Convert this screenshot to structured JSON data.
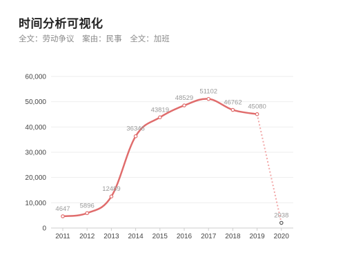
{
  "header": {
    "title": "时间分析可视化",
    "filters": [
      {
        "label": "全文：劳动争议"
      },
      {
        "label": "案由：民事"
      },
      {
        "label": "全文：加班"
      }
    ]
  },
  "chart_data": {
    "type": "line",
    "title": "",
    "xlabel": "",
    "ylabel": "",
    "categories": [
      "2011",
      "2012",
      "2013",
      "2014",
      "2015",
      "2016",
      "2017",
      "2018",
      "2019",
      "2020"
    ],
    "series": [
      {
        "values": [
          4647,
          5896,
          12489,
          36346,
          43819,
          48529,
          51102,
          46762,
          45080,
          2038
        ]
      }
    ],
    "data_labels": [
      "4647",
      "5896",
      "12489",
      "36346",
      "43819",
      "48529",
      "51102",
      "46762",
      "45080",
      "2038"
    ],
    "y_ticks": [
      0,
      10000,
      20000,
      30000,
      40000,
      50000,
      60000
    ],
    "y_tick_labels": [
      "0",
      "10,000",
      "20,000",
      "30,000",
      "40,000",
      "50,000",
      "60,000"
    ],
    "ylim": [
      0,
      60000
    ],
    "grid": true,
    "last_segment_dashed": true,
    "colors": {
      "line": "#e06c6c",
      "dashed": "#f2a6a6",
      "grid": "#eeeeee",
      "axis": "#cccccc",
      "point_fill": "#ffffff",
      "last_point_stroke": "#555555"
    }
  }
}
